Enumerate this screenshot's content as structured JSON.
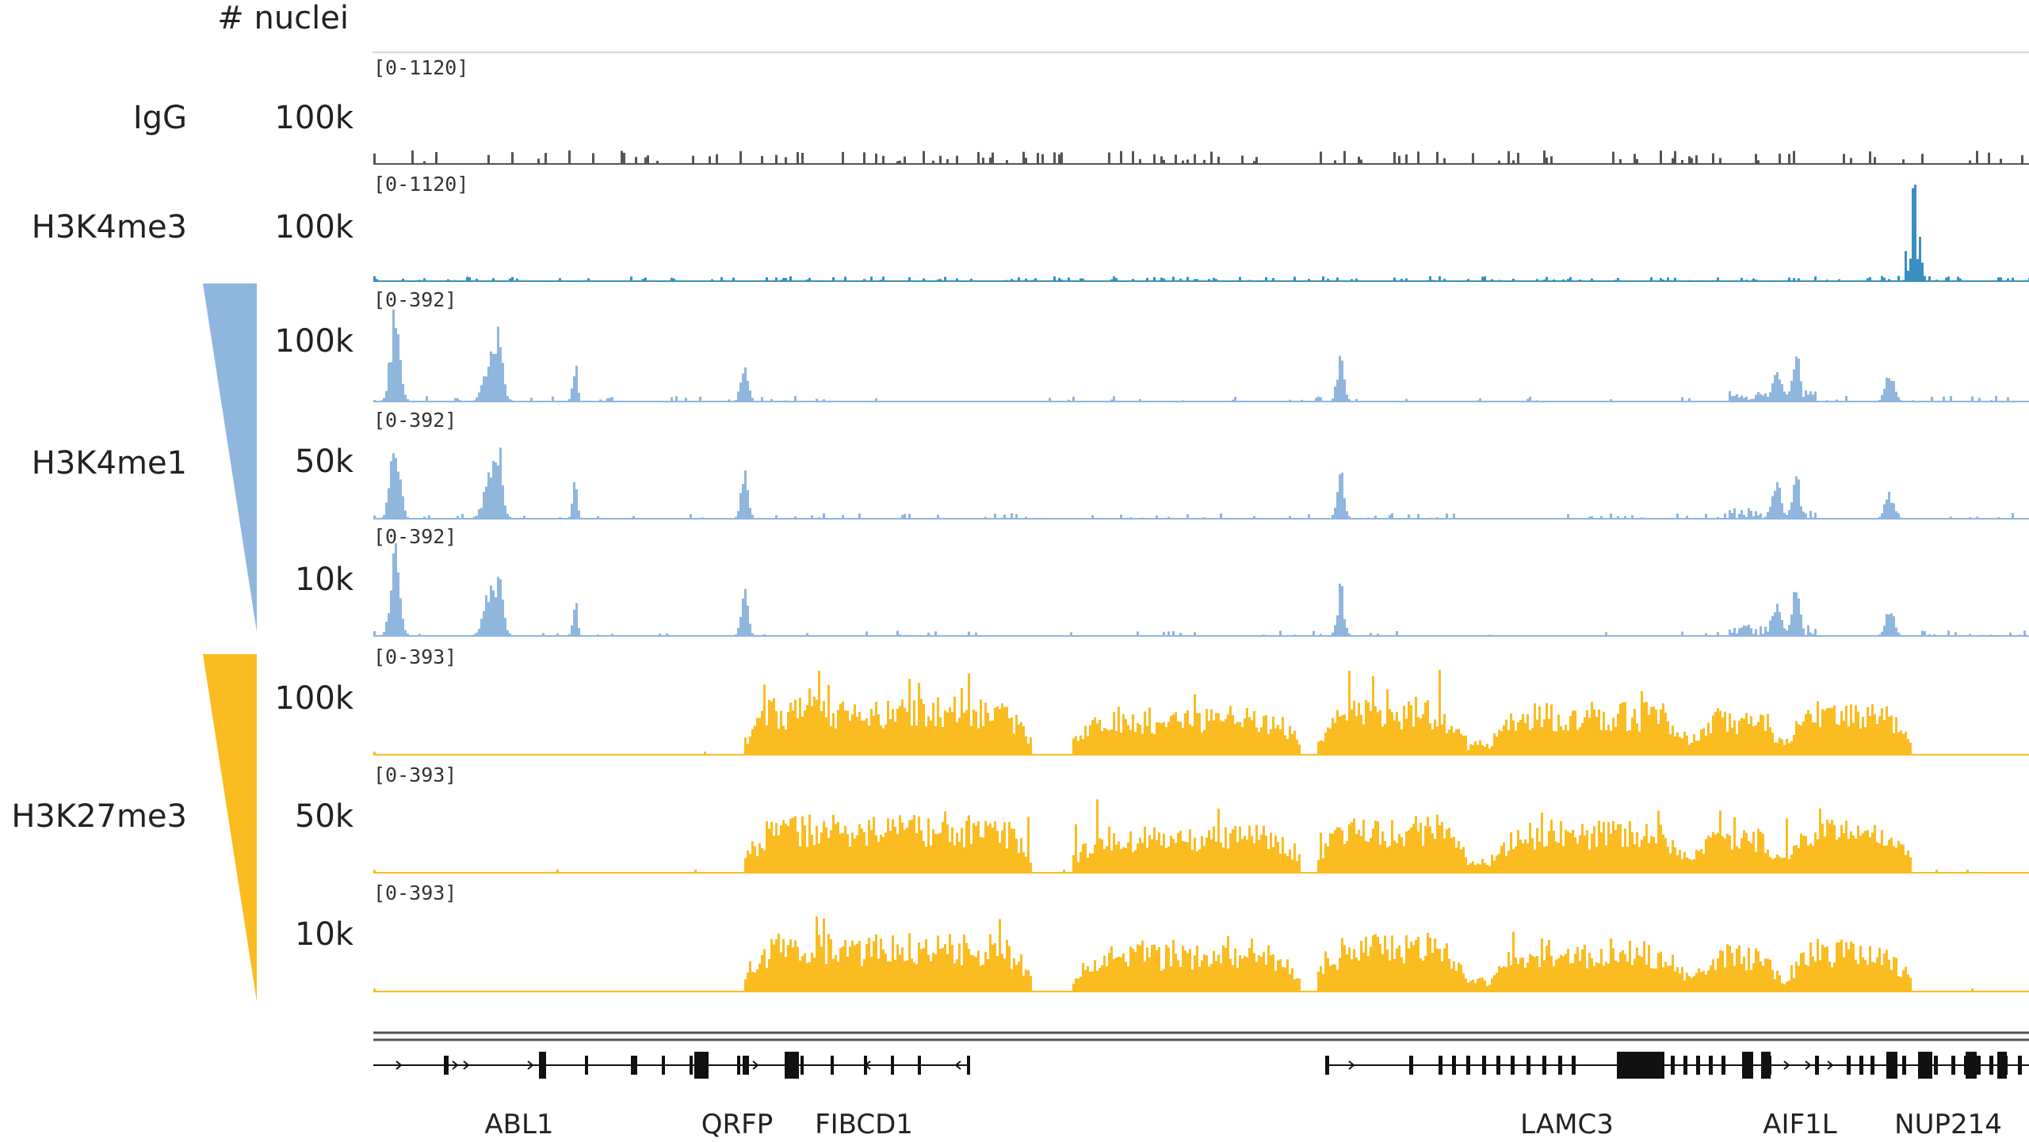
{
  "header": {
    "nuclei_label": "# nuclei"
  },
  "colors": {
    "igg": "#555555",
    "h3k4me3": "#3a8ec1",
    "h3k4me1": "#8fb6dd",
    "h3k27me3": "#fbbc21",
    "gene": "#111111",
    "baseline_gray": "#cccccc"
  },
  "chart_data": {
    "type": "area",
    "title": "",
    "xlabel": "",
    "ylabel": "# nuclei",
    "grid": false,
    "tracks": [
      {
        "id": "igg",
        "mark": "IgG",
        "nuclei": "100k",
        "range": "[0-1120]",
        "ylim": [
          0,
          1120
        ],
        "color": "#555555",
        "profile": "noise"
      },
      {
        "id": "h3k4me3",
        "mark": "H3K4me3",
        "nuclei": "100k",
        "range": "[0-1120]",
        "ylim": [
          0,
          1120
        ],
        "color": "#3a8ec1",
        "profile": "k4me3"
      },
      {
        "id": "h3k4me1_100k",
        "mark": "H3K4me1",
        "nuclei": "100k",
        "range": "[0-392]",
        "ylim": [
          0,
          392
        ],
        "color": "#8fb6dd",
        "profile": "k4me1"
      },
      {
        "id": "h3k4me1_50k",
        "mark": "",
        "nuclei": "50k",
        "range": "[0-392]",
        "ylim": [
          0,
          392
        ],
        "color": "#8fb6dd",
        "profile": "k4me1"
      },
      {
        "id": "h3k4me1_10k",
        "mark": "",
        "nuclei": "10k",
        "range": "[0-392]",
        "ylim": [
          0,
          392
        ],
        "color": "#8fb6dd",
        "profile": "k4me1"
      },
      {
        "id": "h3k27me3_100k",
        "mark": "H3K27me3",
        "nuclei": "100k",
        "range": "[0-393]",
        "ylim": [
          0,
          393
        ],
        "color": "#fbbc21",
        "profile": "k27me3"
      },
      {
        "id": "h3k27me3_50k",
        "mark": "",
        "nuclei": "50k",
        "range": "[0-393]",
        "ylim": [
          0,
          393
        ],
        "color": "#fbbc21",
        "profile": "k27me3"
      },
      {
        "id": "h3k27me3_10k",
        "mark": "",
        "nuclei": "10k",
        "range": "[0-393]",
        "ylim": [
          0,
          393
        ],
        "color": "#fbbc21",
        "profile": "k27me3"
      }
    ],
    "group_labels": [
      {
        "mark": "H3K4me1",
        "nuclei": [
          "100k",
          "50k",
          "10k"
        ],
        "color": "#8fb6dd"
      },
      {
        "mark": "H3K27me3",
        "nuclei": [
          "100k",
          "50k",
          "10k"
        ],
        "color": "#fbbc21"
      }
    ],
    "genes": [
      "ABL1",
      "QRFP",
      "FIBCD1",
      "LAMC3",
      "AIF1L",
      "NUP214"
    ]
  }
}
